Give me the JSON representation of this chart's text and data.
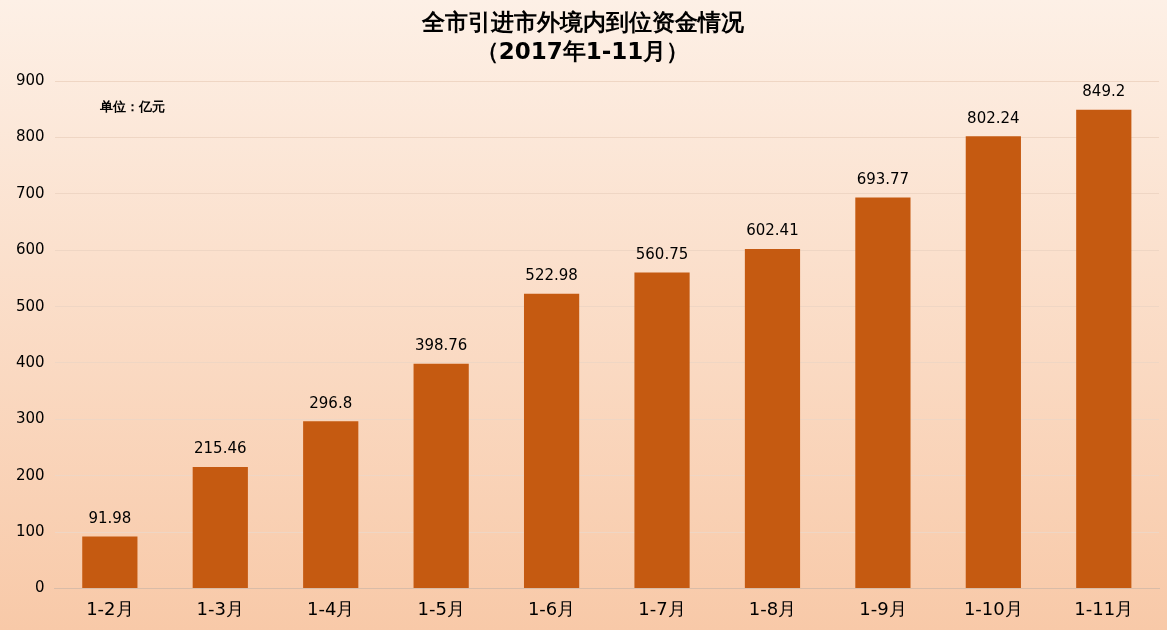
{
  "chart_data": {
    "type": "bar",
    "title": "全市引进市外境内到位资金情况",
    "subtitle": "（2017年1-11月）",
    "categories": [
      "1-2月",
      "1-3月",
      "1-4月",
      "1-5月",
      "1-6月",
      "1-7月",
      "1-8月",
      "1-9月",
      "1-10月",
      "1-11月"
    ],
    "values": [
      91.98,
      215.46,
      296.8,
      398.76,
      522.98,
      560.75,
      602.41,
      693.77,
      802.24,
      849.2
    ],
    "color": "#c55a11",
    "ylim": [
      0,
      900
    ],
    "yticks": [
      0,
      100,
      200,
      300,
      400,
      500,
      600,
      700,
      800,
      900
    ],
    "grid": "y",
    "data_labels": true,
    "legend": false,
    "annotations": [
      "单位：亿元"
    ]
  }
}
